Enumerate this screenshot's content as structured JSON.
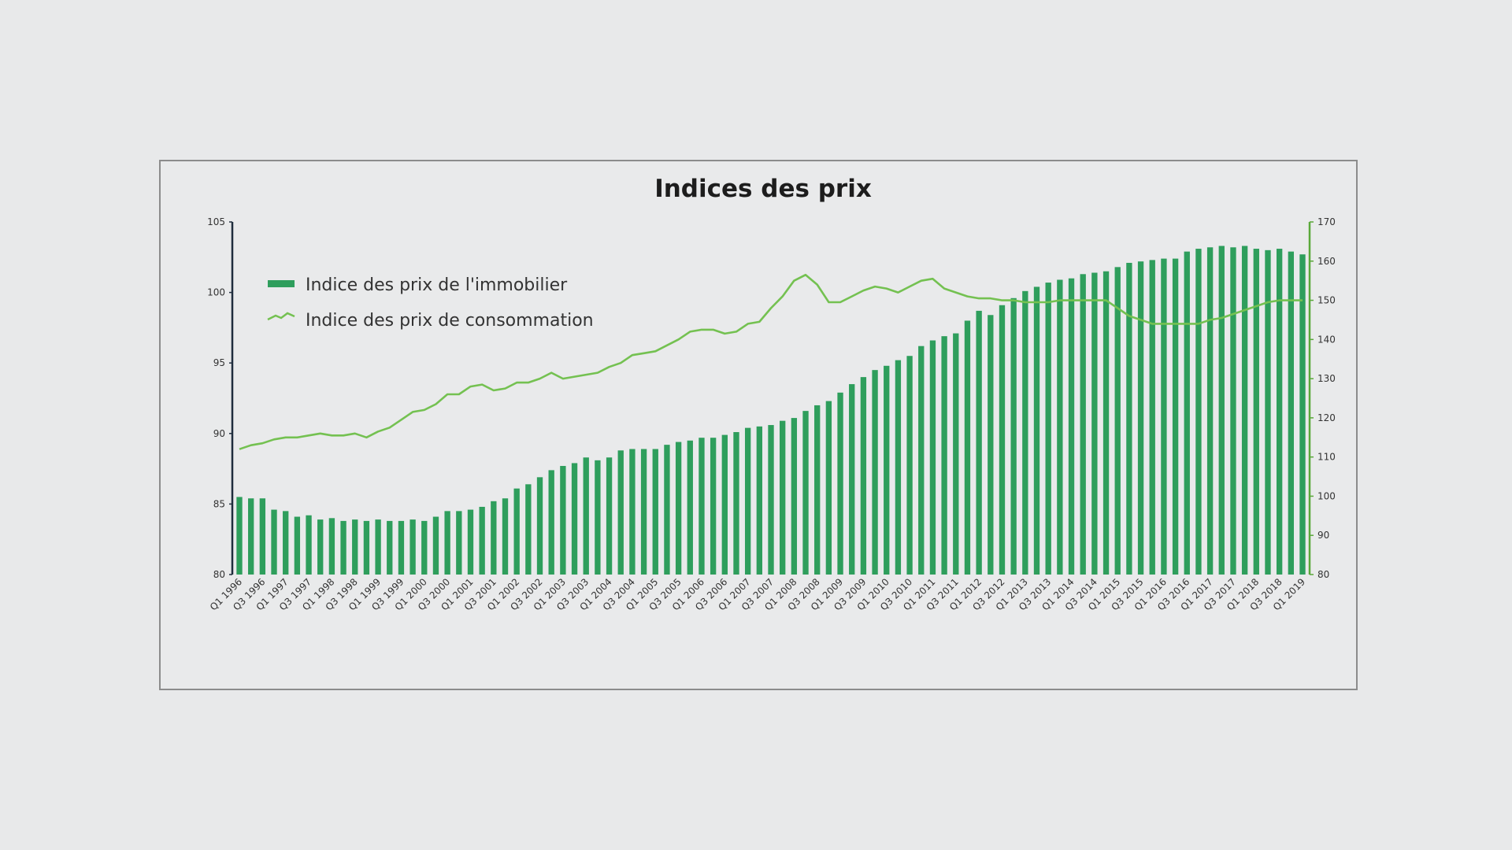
{
  "chart_data": {
    "type": "bar",
    "title": "Indices des prix",
    "xlabel": "",
    "ylabel": "",
    "ylabel_right": "",
    "ylim": [
      80,
      105
    ],
    "ylim_right": [
      80,
      170
    ],
    "yticks": [
      "80",
      "85",
      "90",
      "95",
      "100",
      "105"
    ],
    "yticks_right": [
      "80",
      "90",
      "100",
      "110",
      "120",
      "130",
      "140",
      "150",
      "160",
      "170"
    ],
    "legend_position": "top-left",
    "grid": false,
    "colors": {
      "bar": "#2e9e5c",
      "line": "#74c151",
      "axis_left": "#1f2d3d",
      "axis_right": "#5aa83a"
    },
    "categories": [
      "Q1 1996",
      "Q2 1996",
      "Q3 1996",
      "Q4 1996",
      "Q1 1997",
      "Q2 1997",
      "Q3 1997",
      "Q4 1997",
      "Q1 1998",
      "Q2 1998",
      "Q3 1998",
      "Q4 1998",
      "Q1 1999",
      "Q2 1999",
      "Q3 1999",
      "Q4 1999",
      "Q1 2000",
      "Q2 2000",
      "Q3 2000",
      "Q4 2000",
      "Q1 2001",
      "Q2 2001",
      "Q3 2001",
      "Q4 2001",
      "Q1 2002",
      "Q2 2002",
      "Q3 2002",
      "Q4 2002",
      "Q1 2003",
      "Q2 2003",
      "Q3 2003",
      "Q4 2003",
      "Q1 2004",
      "Q2 2004",
      "Q3 2004",
      "Q4 2004",
      "Q1 2005",
      "Q2 2005",
      "Q3 2005",
      "Q4 2005",
      "Q1 2006",
      "Q2 2006",
      "Q3 2006",
      "Q4 2006",
      "Q1 2007",
      "Q2 2007",
      "Q3 2007",
      "Q4 2007",
      "Q1 2008",
      "Q2 2008",
      "Q3 2008",
      "Q4 2008",
      "Q1 2009",
      "Q2 2009",
      "Q3 2009",
      "Q4 2009",
      "Q1 2010",
      "Q2 2010",
      "Q3 2010",
      "Q4 2010",
      "Q1 2011",
      "Q2 2011",
      "Q3 2011",
      "Q4 2011",
      "Q1 2012",
      "Q2 2012",
      "Q3 2012",
      "Q4 2012",
      "Q1 2013",
      "Q2 2013",
      "Q3 2013",
      "Q4 2013",
      "Q1 2014",
      "Q2 2014",
      "Q3 2014",
      "Q4 2014",
      "Q1 2015",
      "Q2 2015",
      "Q3 2015",
      "Q4 2015",
      "Q1 2016",
      "Q2 2016",
      "Q3 2016",
      "Q4 2016",
      "Q1 2017",
      "Q2 2017",
      "Q3 2017",
      "Q4 2017",
      "Q1 2018",
      "Q2 2018",
      "Q3 2018",
      "Q4 2018",
      "Q1 2019"
    ],
    "xtick_labels": [
      "Q1 1996",
      "Q3 1996",
      "Q1 1997",
      "Q3 1997",
      "Q1 1998",
      "Q3 1998",
      "Q1 1999",
      "Q3 1999",
      "Q1 2000",
      "Q3 2000",
      "Q1 2001",
      "Q3 2001",
      "Q1 2002",
      "Q3 2002",
      "Q1 2003",
      "Q3 2003",
      "Q1 2004",
      "Q3 2004",
      "Q1 2005",
      "Q3 2005",
      "Q1 2006",
      "Q3 2006",
      "Q1 2007",
      "Q3 2007",
      "Q1 2008",
      "Q3 2008",
      "Q1 2009",
      "Q3 2009",
      "Q1 2010",
      "Q3 2010",
      "Q1 2011",
      "Q3 2011",
      "Q1 2012",
      "Q3 2012",
      "Q1 2013",
      "Q3 2013",
      "Q1 2014",
      "Q3 2014",
      "Q1 2015",
      "Q3 2015",
      "Q1 2016",
      "Q3 2016",
      "Q1 2017",
      "Q3 2017",
      "Q1 2018",
      "Q3 2018",
      "Q1 2019"
    ],
    "series": [
      {
        "name": "Indice des prix de l'immobilier",
        "type": "bar",
        "axis": "left",
        "values": [
          85.5,
          85.4,
          85.4,
          84.6,
          84.5,
          84.1,
          84.2,
          83.9,
          84.0,
          83.8,
          83.9,
          83.8,
          83.9,
          83.8,
          83.8,
          83.9,
          83.8,
          84.1,
          84.5,
          84.5,
          84.6,
          84.8,
          85.2,
          85.4,
          86.1,
          86.4,
          86.9,
          87.4,
          87.7,
          87.9,
          88.3,
          88.1,
          88.3,
          88.8,
          88.9,
          88.9,
          88.9,
          89.2,
          89.4,
          89.5,
          89.7,
          89.7,
          89.9,
          90.1,
          90.4,
          90.5,
          90.6,
          90.9,
          91.1,
          91.6,
          92.0,
          92.3,
          92.9,
          93.5,
          94.0,
          94.5,
          94.8,
          95.2,
          95.5,
          96.2,
          96.6,
          96.9,
          97.1,
          98.0,
          98.7,
          98.4,
          99.1,
          99.6,
          100.1,
          100.4,
          100.7,
          100.9,
          101.0,
          101.3,
          101.4,
          101.5,
          101.8,
          102.1,
          102.2,
          102.3,
          102.4,
          102.4,
          102.9,
          103.1,
          103.2,
          103.3,
          103.2,
          103.3,
          103.1,
          103.0,
          103.1,
          102.9,
          102.7
        ]
      },
      {
        "name": "Indice des prix de consommation",
        "type": "line",
        "axis": "right",
        "values": [
          112,
          113,
          113.5,
          114.5,
          115,
          115,
          115.5,
          116,
          115.5,
          115.5,
          116,
          115,
          116.5,
          117.5,
          119.5,
          121.5,
          122,
          123.5,
          126,
          126,
          128,
          128.5,
          127,
          127.5,
          129,
          129,
          130,
          131.5,
          130,
          130.5,
          131,
          131.5,
          133,
          134,
          136,
          136.5,
          137,
          138.5,
          140,
          142,
          142.5,
          142.5,
          141.5,
          142,
          144,
          144.5,
          148,
          151,
          155,
          156.5,
          154,
          149.5,
          149.5,
          151,
          152.5,
          153.5,
          153,
          152,
          153.5,
          155,
          155.5,
          153,
          152,
          151,
          150.5,
          150.5,
          150,
          150,
          149.5,
          149.5,
          149.5,
          150,
          150,
          150,
          150,
          150,
          148,
          146,
          145,
          144,
          144,
          144,
          144,
          144,
          145,
          145.5,
          146.5,
          147.5,
          148.5,
          149.5,
          150,
          150,
          150
        ]
      }
    ]
  }
}
